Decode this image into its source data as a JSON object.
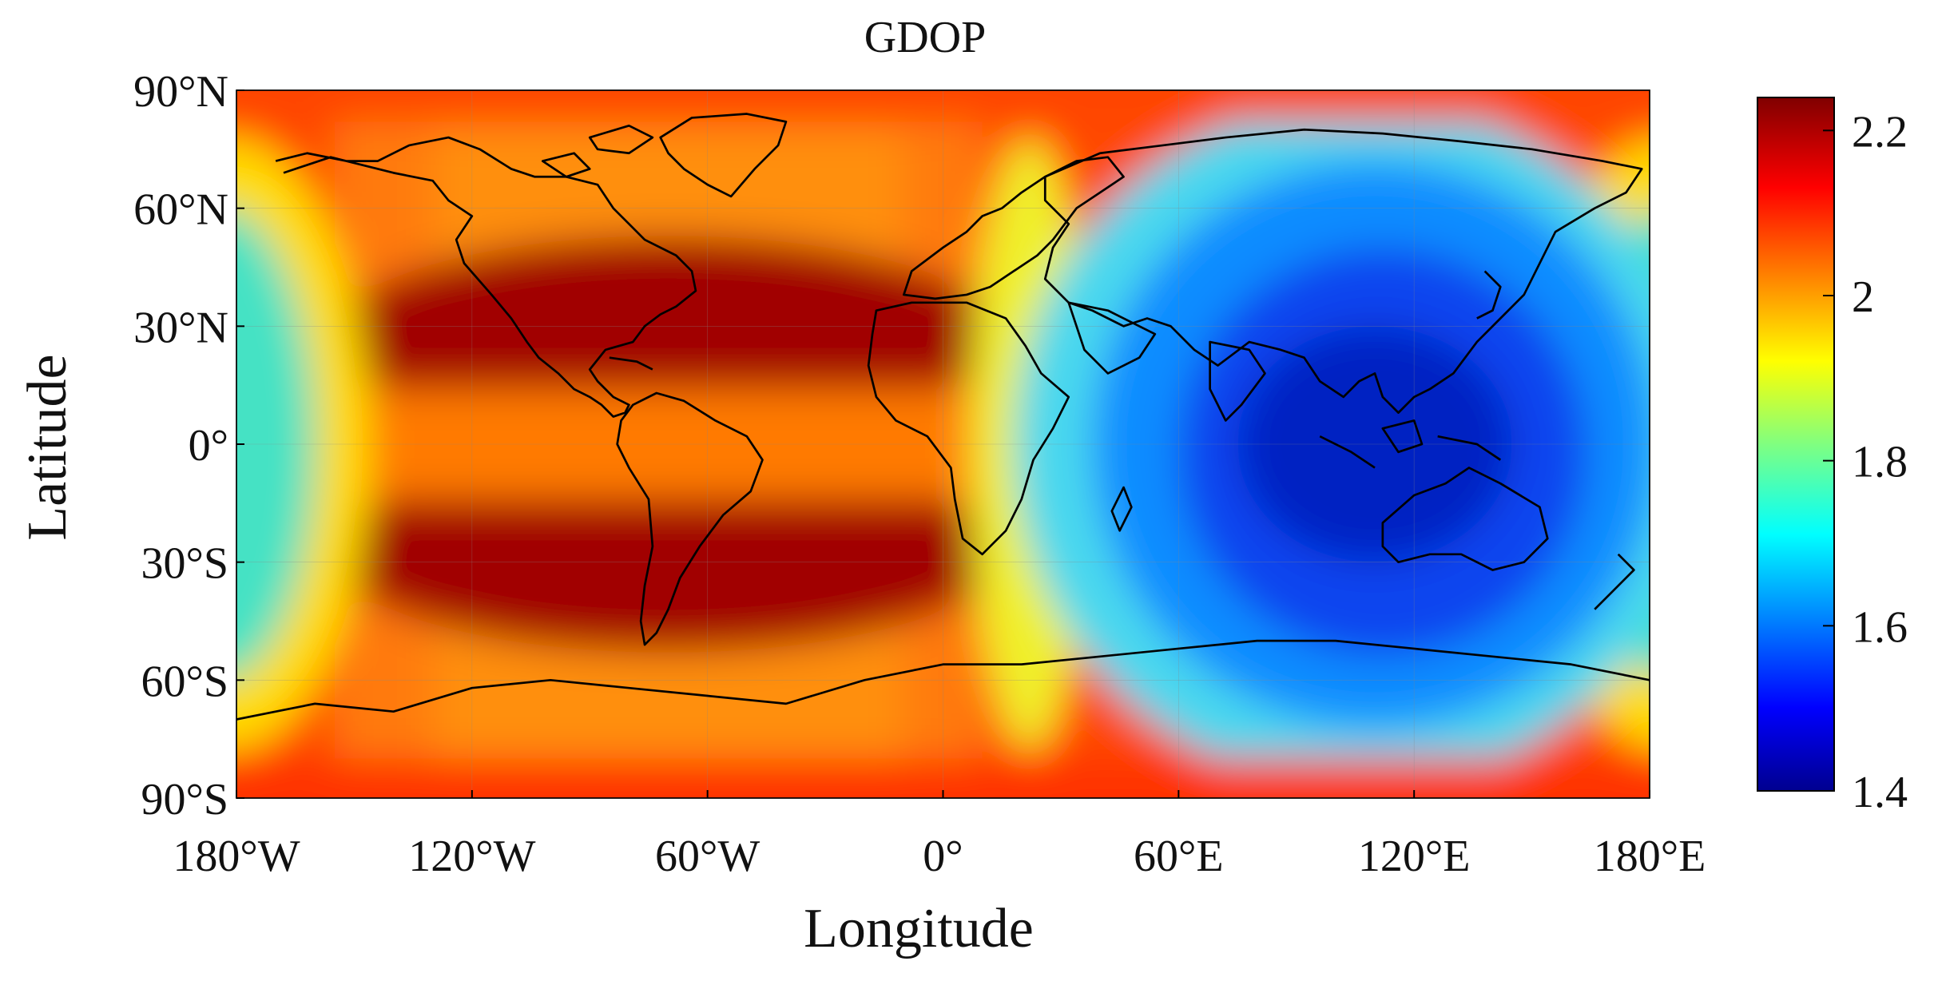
{
  "title": "GDOP",
  "x_axis": {
    "label": "Longitude",
    "ticks": [
      {
        "value": -180,
        "label": "180°W"
      },
      {
        "value": -120,
        "label": "120°W"
      },
      {
        "value": -60,
        "label": "60°W"
      },
      {
        "value": 0,
        "label": "0°"
      },
      {
        "value": 60,
        "label": "60°E"
      },
      {
        "value": 120,
        "label": "120°E"
      },
      {
        "value": 180,
        "label": "180°E"
      }
    ]
  },
  "y_axis": {
    "label": "Latitude",
    "ticks": [
      {
        "value": 90,
        "label": "90°N"
      },
      {
        "value": 60,
        "label": "60°N"
      },
      {
        "value": 30,
        "label": "30°N"
      },
      {
        "value": 0,
        "label": "0°"
      },
      {
        "value": -30,
        "label": "30°S"
      },
      {
        "value": -60,
        "label": "60°S"
      },
      {
        "value": -90,
        "label": "90°S"
      }
    ]
  },
  "colorbar": {
    "range": [
      1.4,
      2.24
    ],
    "colormap": "jet",
    "ticks": [
      {
        "value": 2.2,
        "label": "2.2"
      },
      {
        "value": 2.0,
        "label": "2"
      },
      {
        "value": 1.8,
        "label": "1.8"
      },
      {
        "value": 1.6,
        "label": "1.6"
      },
      {
        "value": 1.4,
        "label": "1.4"
      }
    ]
  },
  "chart_data": {
    "type": "heatmap",
    "title": "GDOP",
    "xlabel": "Longitude",
    "ylabel": "Latitude",
    "xlim": [
      -180,
      180
    ],
    "ylim": [
      -90,
      90
    ],
    "color_range": [
      1.4,
      2.24
    ],
    "overlay": "world coastlines",
    "description_values": {
      "americas_mid_latitude_max": 2.22,
      "asia_pacific_equatorial_min": 1.42
    }
  }
}
